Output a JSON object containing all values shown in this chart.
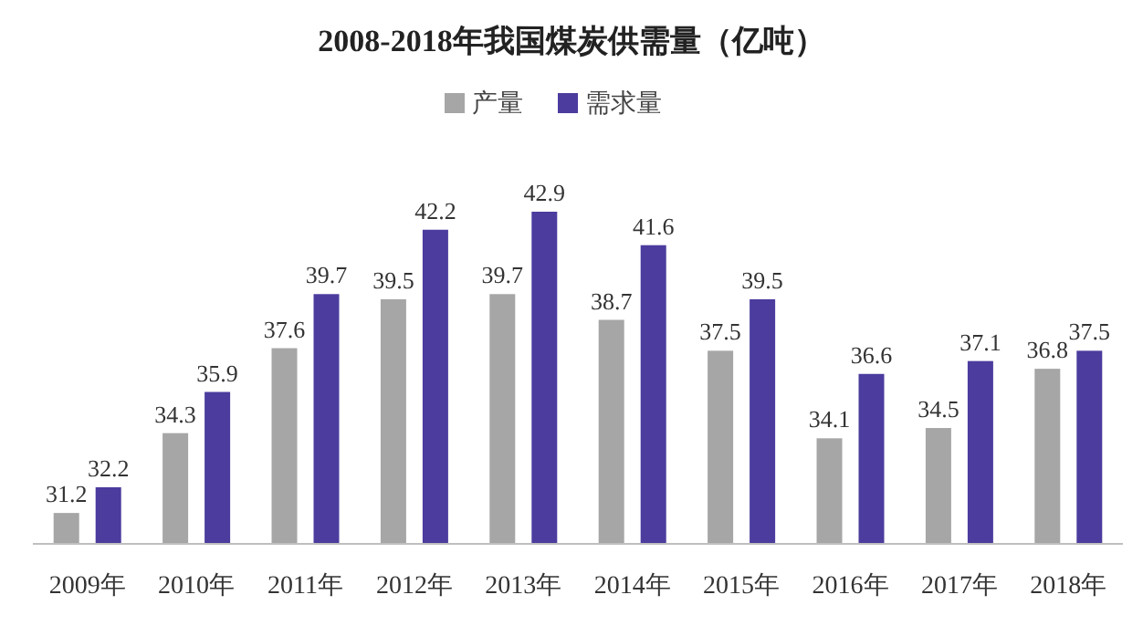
{
  "chart_data": {
    "type": "bar",
    "title": "2008-2018年我国煤炭供需量（亿吨）",
    "categories": [
      "2009年",
      "2010年",
      "2011年",
      "2012年",
      "2013年",
      "2014年",
      "2015年",
      "2016年",
      "2017年",
      "2018年"
    ],
    "series": [
      {
        "name": "产量",
        "color": "#a6a6a6",
        "values": [
          31.2,
          34.3,
          37.6,
          39.5,
          39.7,
          38.7,
          37.5,
          34.1,
          34.5,
          36.8
        ]
      },
      {
        "name": "需求量",
        "color": "#4b3c9e",
        "values": [
          32.2,
          35.9,
          39.7,
          42.2,
          42.9,
          41.6,
          39.5,
          36.6,
          37.1,
          37.5
        ]
      }
    ],
    "ylim": [
      30,
      42.9
    ],
    "data_labels": true,
    "legend": "top"
  }
}
